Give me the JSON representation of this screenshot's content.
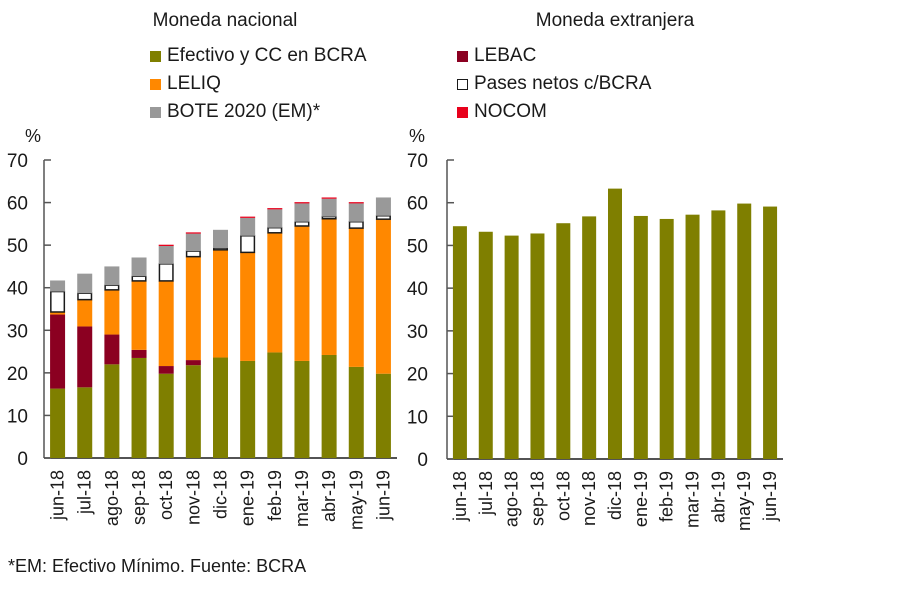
{
  "footnote": "*EM: Efectivo Mínimo. Fuente: BCRA",
  "legend": [
    {
      "label": "Efectivo y CC en BCRA",
      "color": "#7F7F00",
      "key": "efectivo"
    },
    {
      "label": "LELIQ",
      "color": "#FF8800",
      "key": "leliq"
    },
    {
      "label": "BOTE 2020 (EM)*",
      "color": "#999999",
      "key": "bote"
    },
    {
      "label": "LEBAC",
      "color": "#8B0021",
      "key": "lebac"
    },
    {
      "label": "Pases netos c/BCRA",
      "color": "#FFFFFF",
      "border": "#1a1a1a",
      "key": "pases"
    },
    {
      "label": "NOCOM",
      "color": "#E8001C",
      "key": "nocom"
    }
  ],
  "chart_data": [
    {
      "type": "bar",
      "stacked": true,
      "title": "Moneda nacional",
      "ylabel": "%",
      "xlabel": "",
      "ylim": [
        0,
        70
      ],
      "yticks": [
        0,
        10,
        20,
        30,
        40,
        50,
        60,
        70
      ],
      "grid": false,
      "categories": [
        "jun-18",
        "jul-18",
        "ago-18",
        "sep-18",
        "oct-18",
        "nov-18",
        "dic-18",
        "ene-19",
        "feb-19",
        "mar-19",
        "abr-19",
        "may-19",
        "jun-19"
      ],
      "series": [
        {
          "name": "Efectivo y CC en BCRA",
          "key": "efectivo",
          "color": "#7F7F00",
          "values": [
            16.3,
            16.6,
            22.0,
            23.5,
            19.8,
            21.8,
            23.6,
            22.8,
            24.8,
            22.8,
            24.2,
            21.4,
            19.8
          ]
        },
        {
          "name": "LEBAC",
          "key": "lebac",
          "color": "#8B0021",
          "values": [
            17.4,
            14.3,
            7.0,
            1.9,
            1.8,
            1.2,
            0,
            0,
            0,
            0,
            0,
            0,
            0
          ]
        },
        {
          "name": "LELIQ",
          "key": "leliq",
          "color": "#FF8800",
          "values": [
            0.6,
            6.3,
            10.5,
            16.2,
            20.0,
            24.3,
            25.3,
            25.5,
            28.1,
            31.7,
            32.0,
            32.6,
            36.3
          ]
        },
        {
          "name": "Pases netos c/BCRA",
          "key": "pases",
          "color": "#FFFFFF",
          "values": [
            4.8,
            1.5,
            1.1,
            1.1,
            4.0,
            1.3,
            0.4,
            3.9,
            1.2,
            1.0,
            0.5,
            1.5,
            0.8
          ]
        },
        {
          "name": "BOTE 2020 (EM)*",
          "key": "bote",
          "color": "#999999",
          "values": [
            2.6,
            4.6,
            4.4,
            4.4,
            4.2,
            4.1,
            4.3,
            4.2,
            4.3,
            4.3,
            4.2,
            4.3,
            4.3
          ]
        },
        {
          "name": "NOCOM",
          "key": "nocom",
          "color": "#E8001C",
          "values": [
            0,
            0,
            0,
            0,
            0.3,
            0.3,
            0,
            0.3,
            0.3,
            0.3,
            0.3,
            0.3,
            0
          ]
        }
      ]
    },
    {
      "type": "bar",
      "stacked": false,
      "title": "Moneda extranjera",
      "ylabel": "%",
      "xlabel": "",
      "ylim": [
        0,
        70
      ],
      "yticks": [
        0,
        10,
        20,
        30,
        40,
        50,
        60,
        70
      ],
      "grid": false,
      "categories": [
        "jun-18",
        "jul-18",
        "ago-18",
        "sep-18",
        "oct-18",
        "nov-18",
        "dic-18",
        "ene-19",
        "feb-19",
        "mar-19",
        "abr-19",
        "may-19",
        "jun-19"
      ],
      "series": [
        {
          "name": "Efectivo y CC en BCRA",
          "key": "efectivo",
          "color": "#7F7F00",
          "values": [
            54.5,
            53.2,
            52.3,
            52.8,
            55.2,
            56.8,
            63.3,
            56.9,
            56.2,
            57.2,
            58.2,
            59.8,
            59.1
          ]
        }
      ]
    }
  ]
}
